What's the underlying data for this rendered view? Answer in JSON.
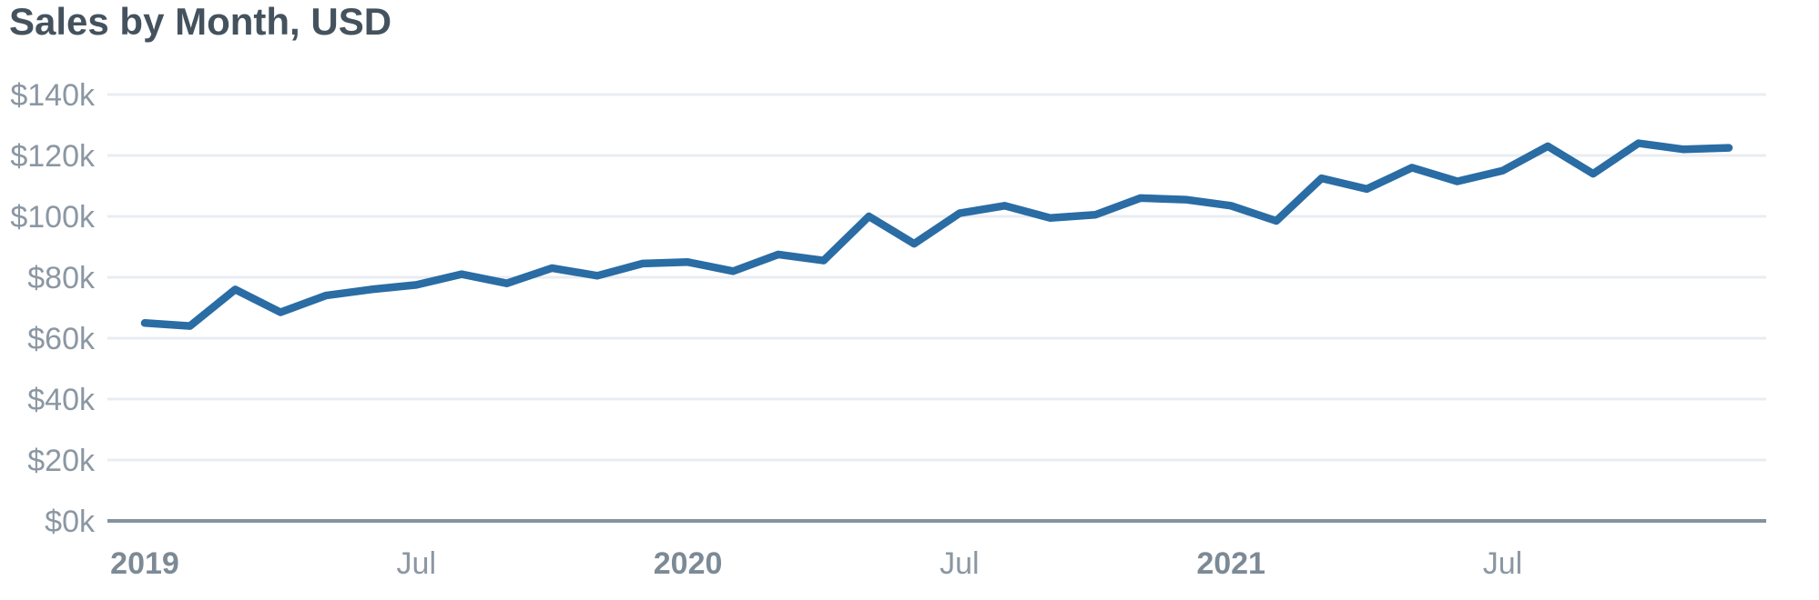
{
  "page": {
    "background_color": "#ffffff"
  },
  "colors": {
    "line": "#2a6ca4",
    "gridline": "#e9ecf2",
    "axis_line": "#8493a0",
    "tick_label": "#8b97a3",
    "year_tick_label": "#7c8a96",
    "title": "#44525e",
    "background": "#ffffff"
  },
  "chart_data": {
    "type": "line",
    "title": "Sales by Month, USD",
    "xlabel": "",
    "ylabel": "",
    "ylim": [
      0,
      140
    ],
    "y_unit": "USD thousands",
    "grid": true,
    "legend": false,
    "categories": [
      "Jan 2019",
      "Feb 2019",
      "Mar 2019",
      "Apr 2019",
      "May 2019",
      "Jun 2019",
      "Jul 2019",
      "Aug 2019",
      "Sep 2019",
      "Oct 2019",
      "Nov 2019",
      "Dec 2019",
      "Jan 2020",
      "Feb 2020",
      "Mar 2020",
      "Apr 2020",
      "May 2020",
      "Jun 2020",
      "Jul 2020",
      "Aug 2020",
      "Sep 2020",
      "Oct 2020",
      "Nov 2020",
      "Dec 2020",
      "Jan 2021",
      "Feb 2021",
      "Mar 2021",
      "Apr 2021",
      "May 2021",
      "Jun 2021",
      "Jul 2021",
      "Aug 2021",
      "Sep 2021",
      "Oct 2021",
      "Nov 2021",
      "Dec 2021"
    ],
    "series": [
      {
        "name": "Sales",
        "values_usd_thousands": [
          65,
          64,
          76,
          68.5,
          74,
          76,
          77.5,
          81,
          78,
          83,
          80.5,
          84.5,
          85,
          82,
          87.5,
          85.5,
          100,
          91,
          101,
          103.5,
          99.5,
          100.5,
          106,
          105.5,
          103.5,
          98.5,
          112.5,
          109,
          116,
          111.5,
          115,
          123,
          114,
          124,
          122,
          122.5
        ]
      }
    ],
    "y_ticks": [
      {
        "label": "$0k",
        "value": 0
      },
      {
        "label": "$20k",
        "value": 20
      },
      {
        "label": "$40k",
        "value": 40
      },
      {
        "label": "$60k",
        "value": 60
      },
      {
        "label": "$80k",
        "value": 80
      },
      {
        "label": "$100k",
        "value": 100
      },
      {
        "label": "$120k",
        "value": 120
      },
      {
        "label": "$140k",
        "value": 140
      }
    ],
    "x_ticks": [
      {
        "label": "2019",
        "month_index": 0,
        "bold": true
      },
      {
        "label": "Jul",
        "month_index": 6,
        "bold": false
      },
      {
        "label": "2020",
        "month_index": 12,
        "bold": true
      },
      {
        "label": "Jul",
        "month_index": 18,
        "bold": false
      },
      {
        "label": "2021",
        "month_index": 24,
        "bold": true
      },
      {
        "label": "Jul",
        "month_index": 30,
        "bold": false
      }
    ]
  }
}
